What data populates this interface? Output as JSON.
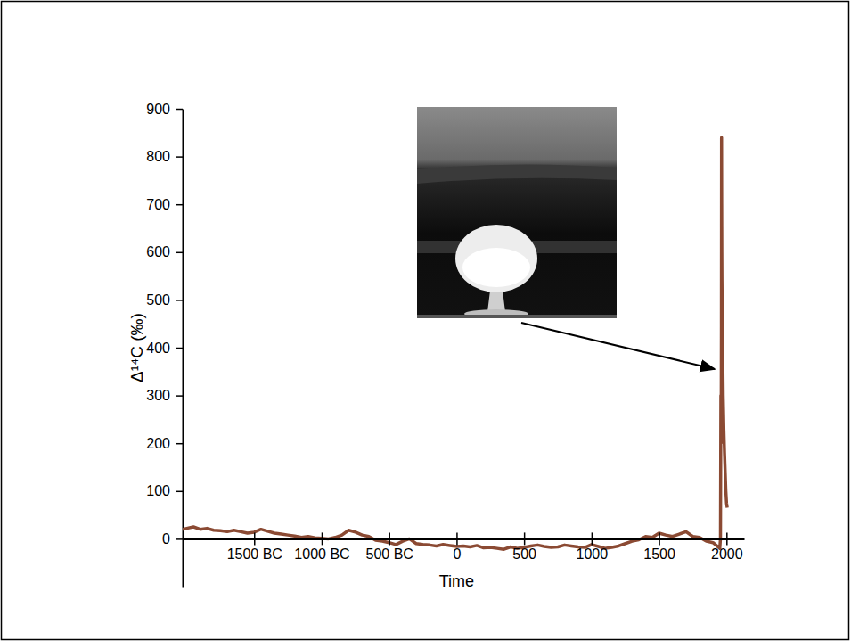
{
  "chart_data": {
    "type": "line",
    "xlabel": "Time",
    "ylabel": "Δ¹⁴C (‰)",
    "color": "#8b4a33",
    "xlim": [
      -2030,
      2130
    ],
    "ylim": [
      -100,
      900
    ],
    "xticks": [
      {
        "value": -1500,
        "label": "1500 BC"
      },
      {
        "value": -1000,
        "label": "1000 BC"
      },
      {
        "value": -500,
        "label": "500 BC"
      },
      0,
      500,
      1000,
      1500,
      2000
    ],
    "yticks": [
      0,
      100,
      200,
      300,
      400,
      500,
      600,
      700,
      800,
      900
    ],
    "x": [
      -2030,
      -2000,
      -1950,
      -1900,
      -1850,
      -1800,
      -1750,
      -1700,
      -1650,
      -1600,
      -1550,
      -1500,
      -1450,
      -1400,
      -1350,
      -1300,
      -1250,
      -1200,
      -1150,
      -1100,
      -1050,
      -1000,
      -950,
      -900,
      -850,
      -800,
      -750,
      -700,
      -650,
      -600,
      -550,
      -500,
      -450,
      -400,
      -350,
      -300,
      -250,
      -200,
      -150,
      -100,
      -50,
      0,
      50,
      100,
      150,
      200,
      250,
      300,
      350,
      400,
      450,
      500,
      550,
      600,
      650,
      700,
      750,
      800,
      850,
      900,
      950,
      1000,
      1050,
      1100,
      1150,
      1200,
      1250,
      1300,
      1350,
      1400,
      1450,
      1500,
      1550,
      1600,
      1650,
      1700,
      1750,
      1800,
      1850,
      1900,
      1950,
      1955,
      1958,
      1960,
      1962,
      1963,
      1964,
      1965,
      1966,
      1968,
      1970,
      1972,
      1975,
      1978,
      1980,
      1985,
      1990,
      1995,
      2000,
      2005
    ],
    "values": [
      20,
      22,
      25,
      20,
      22,
      18,
      17,
      15,
      18,
      15,
      12,
      14,
      20,
      16,
      12,
      10,
      8,
      6,
      3,
      5,
      2,
      1,
      0,
      3,
      8,
      18,
      14,
      8,
      5,
      -3,
      -5,
      -8,
      -12,
      -5,
      0,
      -10,
      -12,
      -13,
      -15,
      -12,
      -14,
      -16,
      -15,
      -17,
      -14,
      -19,
      -18,
      -20,
      -22,
      -17,
      -20,
      -18,
      -15,
      -13,
      -16,
      -18,
      -17,
      -13,
      -15,
      -17,
      -18,
      -12,
      -16,
      -20,
      -18,
      -15,
      -10,
      -5,
      -2,
      5,
      3,
      12,
      8,
      5,
      10,
      15,
      5,
      3,
      -5,
      -8,
      -20,
      0,
      300,
      200,
      450,
      840,
      700,
      600,
      540,
      470,
      420,
      380,
      300,
      260,
      230,
      180,
      140,
      100,
      75,
      65
    ],
    "grid": false
  }
}
